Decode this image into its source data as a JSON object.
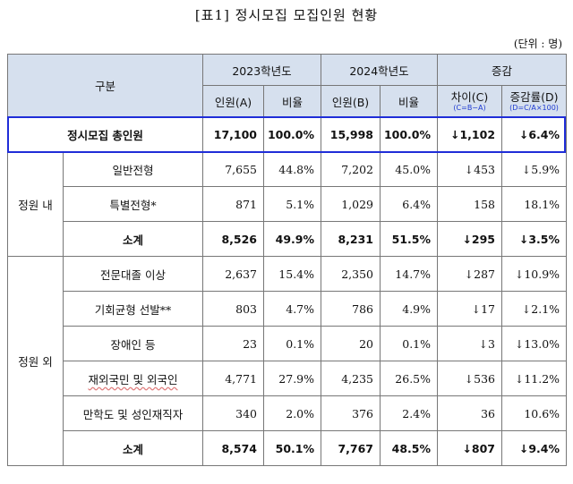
{
  "title": "[표1] 정시모집 모집인원 현황",
  "unit": "(단위 : 명)",
  "header": {
    "category": "구분",
    "year2023": "2023학년도",
    "year2024": "2024학년도",
    "change": "증감",
    "count_a": "인원(A)",
    "ratio_a": "비율",
    "count_b": "인원(B)",
    "ratio_b": "비율",
    "diff": "차이(C)",
    "diff_formula": "(C=B−A)",
    "rate": "증감률(D)",
    "rate_formula": "(D=C/A×100)"
  },
  "total": {
    "label": "정시모집 총인원",
    "a": "17,100",
    "ra": "100.0%",
    "b": "15,998",
    "rb": "100.0%",
    "c": "↓1,102",
    "d": "↓6.4%"
  },
  "groups": [
    {
      "label": "정원 내",
      "rows": [
        {
          "label": "일반전형",
          "a": "7,655",
          "ra": "44.8%",
          "b": "7,202",
          "rb": "45.0%",
          "c": "↓453",
          "d": "↓5.9%"
        },
        {
          "label": "특별전형*",
          "a": "871",
          "ra": "5.1%",
          "b": "1,029",
          "rb": "6.4%",
          "c": "158",
          "d": "18.1%"
        },
        {
          "label": "소계",
          "a": "8,526",
          "ra": "49.9%",
          "b": "8,231",
          "rb": "51.5%",
          "c": "↓295",
          "d": "↓3.5%"
        }
      ]
    },
    {
      "label": "정원 외",
      "rows": [
        {
          "label": "전문대졸 이상",
          "a": "2,637",
          "ra": "15.4%",
          "b": "2,350",
          "rb": "14.7%",
          "c": "↓287",
          "d": "↓10.9%"
        },
        {
          "label": "기회균형 선발**",
          "a": "803",
          "ra": "4.7%",
          "b": "786",
          "rb": "4.9%",
          "c": "↓17",
          "d": "↓2.1%"
        },
        {
          "label": "장애인 등",
          "a": "23",
          "ra": "0.1%",
          "b": "20",
          "rb": "0.1%",
          "c": "↓3",
          "d": "↓13.0%"
        },
        {
          "label": "재외국민 및 외국인",
          "a": "4,771",
          "ra": "27.9%",
          "b": "4,235",
          "rb": "26.5%",
          "c": "↓536",
          "d": "↓11.2%"
        },
        {
          "label": "만학도 및 성인재직자",
          "a": "340",
          "ra": "2.0%",
          "b": "376",
          "rb": "2.4%",
          "c": "36",
          "d": "10.6%"
        },
        {
          "label": "소계",
          "a": "8,574",
          "ra": "50.1%",
          "b": "7,767",
          "rb": "48.5%",
          "c": "↓807",
          "d": "↓9.4%"
        }
      ]
    }
  ]
}
